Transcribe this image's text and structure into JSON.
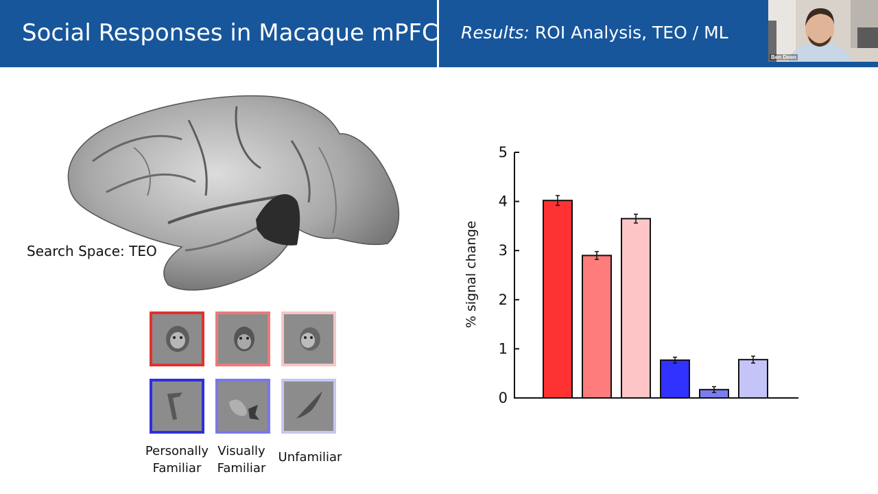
{
  "slide": {
    "title": "Social Responses in Macaque mPFC",
    "subtitle_italic": "Results:",
    "subtitle_rest": " ROI Analysis, TEO / ML",
    "search_space_label": "Search Space: TEO"
  },
  "video": {
    "participant_name": "Ben Deen"
  },
  "stimuli": {
    "labels": {
      "personally_familiar": "Personally\nFamiliar",
      "visually_familiar": "Visually\nFamiliar",
      "unfamiliar": "Unfamiliar"
    },
    "frame_colors": {
      "face_personal": "#e0322f",
      "face_visual": "#ec7a78",
      "face_unfamiliar": "#f6c6c6",
      "object_personal": "#2e2ee0",
      "object_visual": "#7878ee",
      "object_unfamiliar": "#c6c6f4"
    }
  },
  "colors": {
    "header": "#17569b",
    "header_text": "#ffffff"
  },
  "chart_data": {
    "type": "bar",
    "ylabel": "% signal change",
    "ylim": [
      0,
      5
    ],
    "yticks": [
      0,
      1,
      2,
      3,
      4,
      5
    ],
    "ytick_labels": [
      "0",
      "1",
      "2",
      "3",
      "4",
      "5"
    ],
    "values": [
      4.02,
      2.9,
      3.65,
      0.77,
      0.17,
      0.78
    ],
    "errors": [
      0.1,
      0.08,
      0.09,
      0.06,
      0.06,
      0.07
    ],
    "colors": [
      "#fe3233",
      "#fe7c7c",
      "#fec5c7",
      "#3232fe",
      "#7c7cf2",
      "#c4c4f8"
    ]
  }
}
